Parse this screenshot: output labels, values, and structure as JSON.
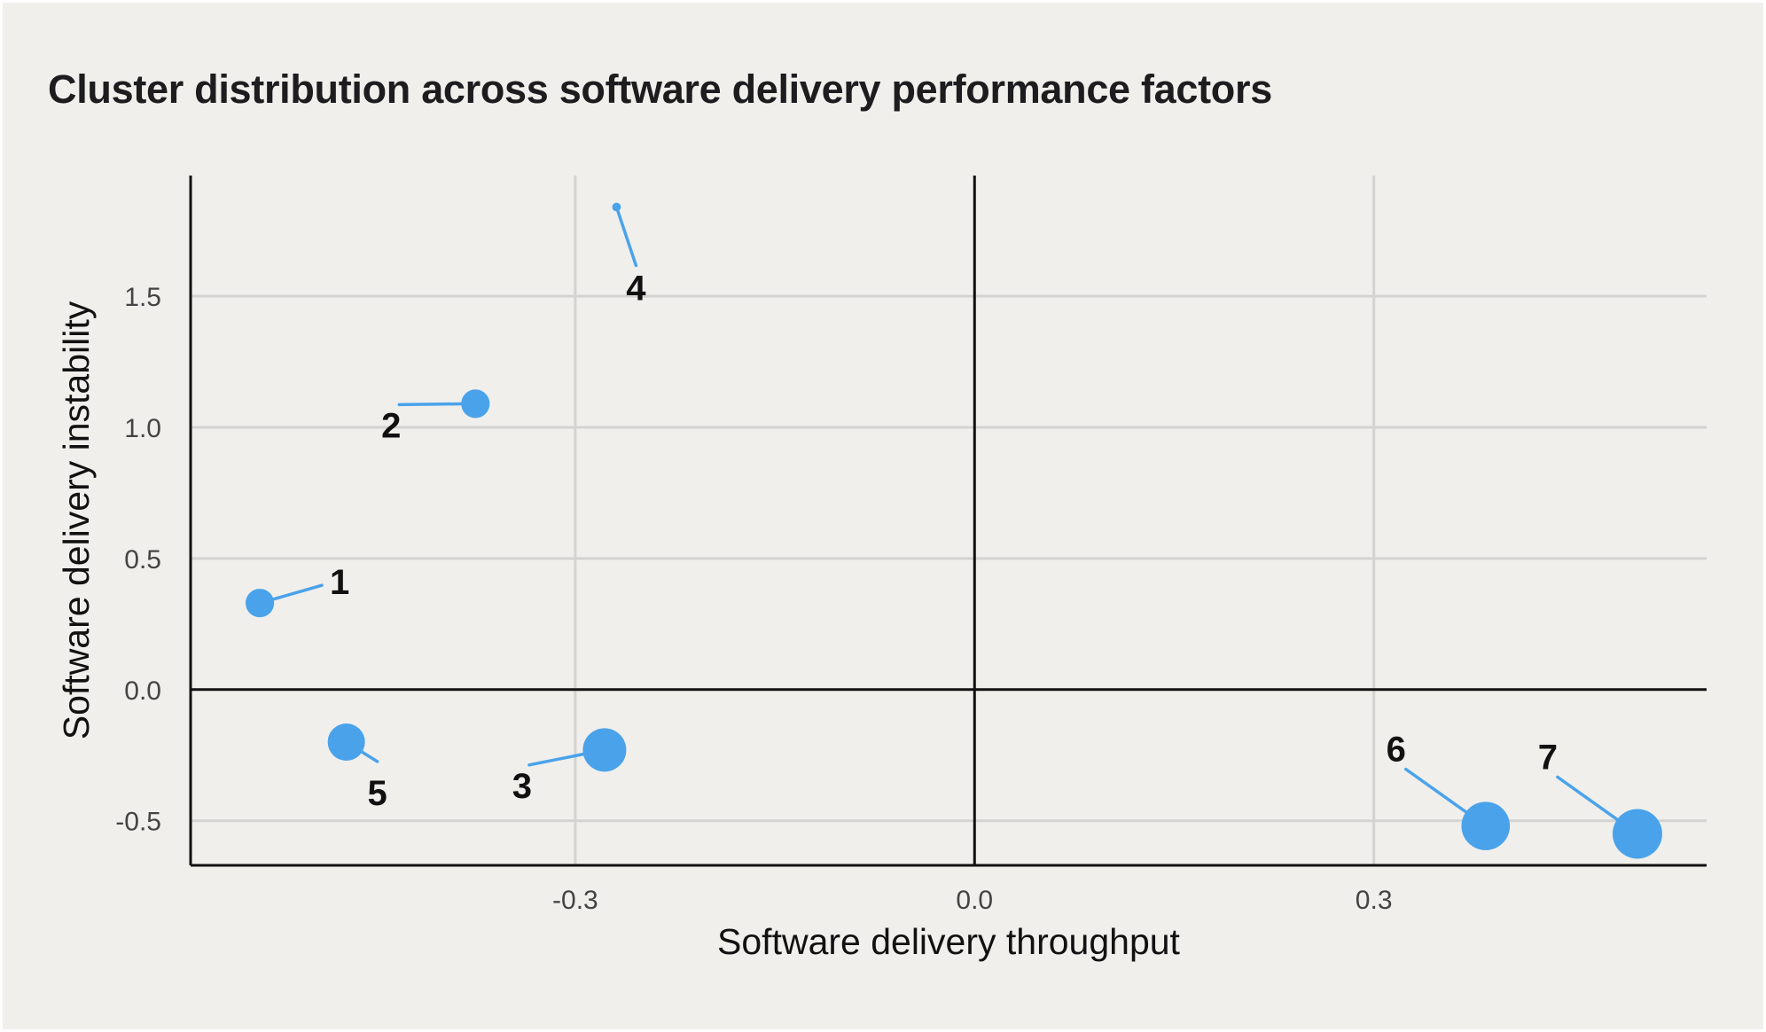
{
  "title": "Cluster distribution across software delivery performance factors",
  "chart_data": {
    "type": "scatter",
    "title": "Cluster distribution across software delivery performance factors",
    "xlabel": "Software delivery throughput",
    "ylabel": "Software delivery instability",
    "xlim": [
      -0.589,
      0.55
    ],
    "ylim": [
      -0.67,
      1.96
    ],
    "xticks": [
      -0.3,
      0.0,
      0.3
    ],
    "xtick_labels": [
      "-0.3",
      "0.0",
      "0.3"
    ],
    "yticks": [
      -0.5,
      0.0,
      0.5,
      1.0,
      1.5
    ],
    "ytick_labels": [
      "-0.5",
      "0.0",
      "0.5",
      "1.0",
      "1.5"
    ],
    "grid": true,
    "colors": {
      "point": "#4aa3ea",
      "grid": "#d3d3d1",
      "axis": "#111111"
    },
    "points": [
      {
        "label": "1",
        "x": -0.537,
        "y": 0.33,
        "size": 2.3,
        "label_dir": "upper-right"
      },
      {
        "label": "2",
        "x": -0.375,
        "y": 1.09,
        "size": 2.3,
        "label_dir": "left"
      },
      {
        "label": "3",
        "x": -0.278,
        "y": -0.23,
        "size": 3.5,
        "label_dir": "lower-left"
      },
      {
        "label": "4",
        "x": -0.269,
        "y": 1.84,
        "size": 0.7,
        "label_dir": "below"
      },
      {
        "label": "5",
        "x": -0.472,
        "y": -0.2,
        "size": 3.0,
        "label_dir": "lower-right"
      },
      {
        "label": "6",
        "x": 0.384,
        "y": -0.52,
        "size": 3.9,
        "label_dir": "upper-left"
      },
      {
        "label": "7",
        "x": 0.498,
        "y": -0.55,
        "size": 4.0,
        "label_dir": "upper-left"
      }
    ]
  }
}
